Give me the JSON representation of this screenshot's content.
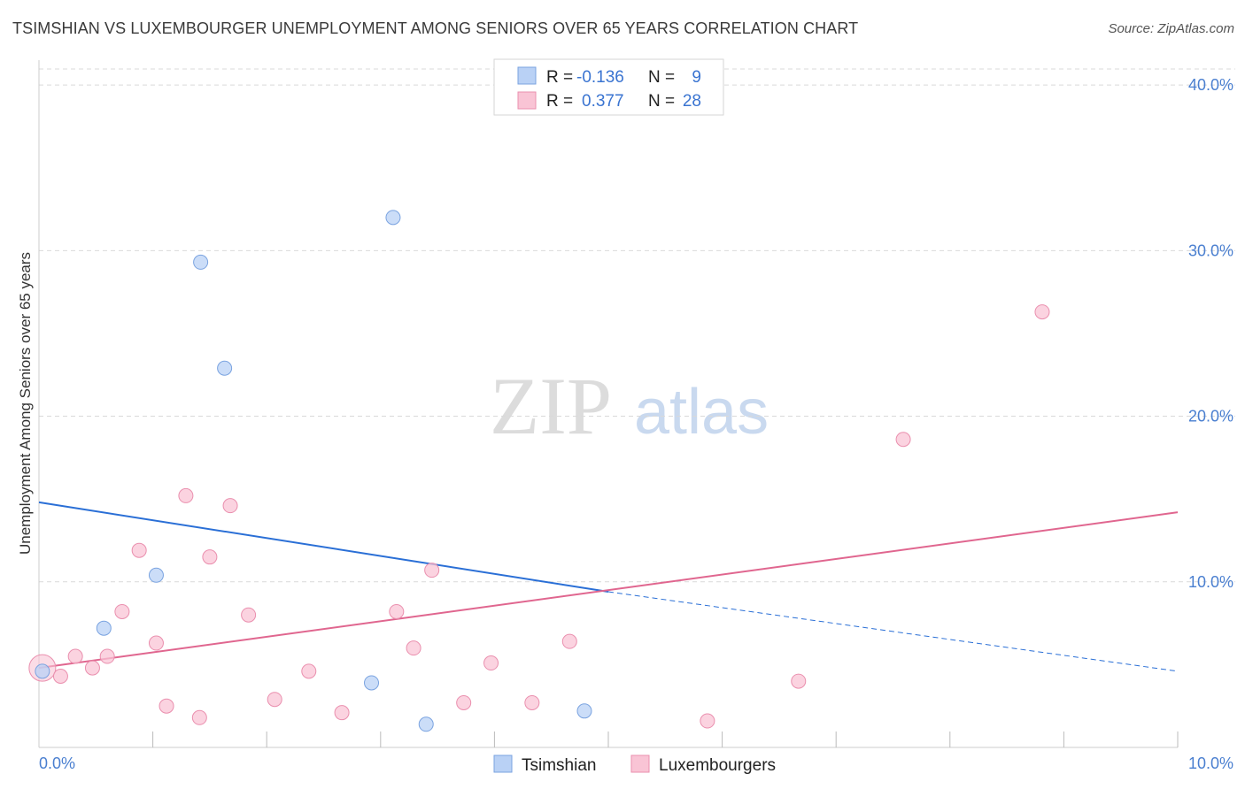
{
  "header": {
    "title": "TSIMSHIAN VS LUXEMBOURGER UNEMPLOYMENT AMONG SENIORS OVER 65 YEARS CORRELATION CHART",
    "source": "Source: ZipAtlas.com"
  },
  "watermark": {
    "zip": "ZIP",
    "atlas": "atlas"
  },
  "colors": {
    "tsimshian_fill": "#b9d1f5",
    "tsimshian_stroke": "#7aa3e0",
    "tsimshian_line": "#2a6fd6",
    "lux_fill": "#f9c4d5",
    "lux_stroke": "#ea8fae",
    "lux_line": "#e0668f",
    "grid": "#d9d9d9",
    "axis_label": "#4a7fd0"
  },
  "legend": {
    "rows": [
      {
        "r_label": "R =",
        "r_value": "-0.136",
        "n_label": "N =",
        "n_value": "9"
      },
      {
        "r_label": "R =",
        "r_value": "0.377",
        "n_label": "N =",
        "n_value": "28"
      }
    ]
  },
  "bottom_legend": [
    "Tsimshian",
    "Luxembourgers"
  ],
  "chart_data": {
    "type": "scatter",
    "title": "TSIMSHIAN VS LUXEMBOURGER UNEMPLOYMENT AMONG SENIORS OVER 65 YEARS CORRELATION CHART",
    "xlabel": "",
    "ylabel": "Unemployment Among Seniors over 65 years",
    "xlim": [
      0,
      10
    ],
    "ylim": [
      0,
      41.5
    ],
    "x_tick_labels": [
      "0.0%",
      "10.0%"
    ],
    "y_ticks": [
      10,
      20,
      30,
      40
    ],
    "y_tick_labels": [
      "10.0%",
      "20.0%",
      "30.0%",
      "40.0%"
    ],
    "grid": true,
    "series": [
      {
        "name": "Tsimshian",
        "r": -0.136,
        "n": 9,
        "points": [
          [
            0.03,
            4.6
          ],
          [
            1.42,
            29.3
          ],
          [
            1.63,
            22.9
          ],
          [
            3.11,
            32.0
          ],
          [
            1.03,
            10.4
          ],
          [
            0.57,
            7.2
          ],
          [
            2.92,
            3.9
          ],
          [
            3.4,
            1.4
          ],
          [
            4.79,
            2.2
          ]
        ],
        "trend": {
          "x": [
            0,
            5
          ],
          "y": [
            14.8,
            9.4
          ],
          "dashed_to": [
            10,
            4.6
          ]
        }
      },
      {
        "name": "Luxembourgers",
        "r": 0.377,
        "n": 28,
        "points": [
          [
            0.03,
            4.8
          ],
          [
            0.19,
            4.3
          ],
          [
            0.32,
            5.5
          ],
          [
            0.47,
            4.8
          ],
          [
            0.6,
            5.5
          ],
          [
            0.73,
            8.2
          ],
          [
            0.88,
            11.9
          ],
          [
            1.03,
            6.3
          ],
          [
            1.12,
            2.5
          ],
          [
            1.29,
            15.2
          ],
          [
            1.41,
            1.8
          ],
          [
            1.5,
            11.5
          ],
          [
            1.68,
            14.6
          ],
          [
            1.84,
            8.0
          ],
          [
            2.07,
            2.9
          ],
          [
            2.37,
            4.6
          ],
          [
            2.66,
            2.1
          ],
          [
            3.14,
            8.2
          ],
          [
            3.29,
            6.0
          ],
          [
            3.45,
            10.7
          ],
          [
            3.73,
            2.7
          ],
          [
            3.97,
            5.1
          ],
          [
            4.33,
            2.7
          ],
          [
            4.66,
            6.4
          ],
          [
            5.87,
            1.6
          ],
          [
            6.67,
            4.0
          ],
          [
            7.59,
            18.6
          ],
          [
            8.81,
            26.3
          ]
        ],
        "trend": {
          "x": [
            0,
            10
          ],
          "y": [
            4.8,
            14.2
          ]
        }
      }
    ]
  }
}
